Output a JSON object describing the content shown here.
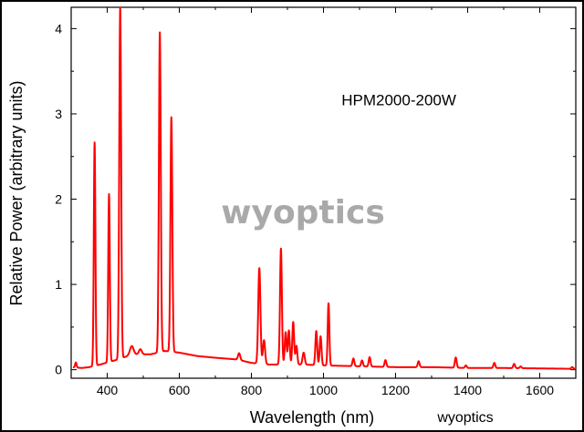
{
  "chart_data": {
    "type": "line",
    "title": "",
    "xlabel": "Wavelength (nm)",
    "ylabel": "Relative Power (arbitrary units)",
    "xlim": [
      300,
      1700
    ],
    "ylim": [
      -0.1,
      4.25
    ],
    "xticks": [
      400,
      600,
      800,
      1000,
      1200,
      1400,
      1600
    ],
    "yticks": [
      0,
      1,
      2,
      3,
      4
    ],
    "grid": false,
    "series": [
      {
        "color": "#ff0000",
        "baseline": [
          [
            300,
            0.03
          ],
          [
            330,
            0.02
          ],
          [
            350,
            0.03
          ],
          [
            380,
            0.06
          ],
          [
            430,
            0.12
          ],
          [
            470,
            0.18
          ],
          [
            520,
            0.18
          ],
          [
            560,
            0.22
          ],
          [
            600,
            0.2
          ],
          [
            650,
            0.16
          ],
          [
            700,
            0.14
          ],
          [
            760,
            0.12
          ],
          [
            800,
            0.08
          ],
          [
            850,
            0.06
          ],
          [
            900,
            0.06
          ],
          [
            950,
            0.06
          ],
          [
            1000,
            0.05
          ],
          [
            1100,
            0.04
          ],
          [
            1200,
            0.03
          ],
          [
            1300,
            0.03
          ],
          [
            1400,
            0.02
          ],
          [
            1500,
            0.02
          ],
          [
            1600,
            0.015
          ],
          [
            1700,
            0.01
          ]
        ],
        "peaks": [
          {
            "x": 313,
            "y": 0.06,
            "w": 2
          },
          {
            "x": 365,
            "y": 2.62,
            "w": 2.2
          },
          {
            "x": 405,
            "y": 1.97,
            "w": 2.2
          },
          {
            "x": 436,
            "y": 4.12,
            "w": 2.6
          },
          {
            "x": 468,
            "y": 0.1,
            "w": 5
          },
          {
            "x": 492,
            "y": 0.06,
            "w": 4
          },
          {
            "x": 546,
            "y": 3.75,
            "w": 2.6
          },
          {
            "x": 578,
            "y": 2.75,
            "w": 2.6
          },
          {
            "x": 766,
            "y": 0.08,
            "w": 3
          },
          {
            "x": 822,
            "y": 1.12,
            "w": 3
          },
          {
            "x": 835,
            "y": 0.28,
            "w": 3
          },
          {
            "x": 882,
            "y": 1.36,
            "w": 2.6
          },
          {
            "x": 895,
            "y": 0.38,
            "w": 2.5
          },
          {
            "x": 904,
            "y": 0.4,
            "w": 2.5
          },
          {
            "x": 916,
            "y": 0.5,
            "w": 2.5
          },
          {
            "x": 925,
            "y": 0.22,
            "w": 2.5
          },
          {
            "x": 945,
            "y": 0.14,
            "w": 3
          },
          {
            "x": 980,
            "y": 0.4,
            "w": 2.5
          },
          {
            "x": 992,
            "y": 0.34,
            "w": 2.5
          },
          {
            "x": 1014,
            "y": 0.73,
            "w": 2.3
          },
          {
            "x": 1083,
            "y": 0.09,
            "w": 2.5
          },
          {
            "x": 1107,
            "y": 0.07,
            "w": 2.5
          },
          {
            "x": 1128,
            "y": 0.11,
            "w": 2.5
          },
          {
            "x": 1172,
            "y": 0.08,
            "w": 2.5
          },
          {
            "x": 1264,
            "y": 0.07,
            "w": 2.5
          },
          {
            "x": 1367,
            "y": 0.12,
            "w": 2.5
          },
          {
            "x": 1395,
            "y": 0.03,
            "w": 2.5
          },
          {
            "x": 1474,
            "y": 0.06,
            "w": 2.5
          },
          {
            "x": 1529,
            "y": 0.05,
            "w": 2.5
          },
          {
            "x": 1547,
            "y": 0.02,
            "w": 2.5
          },
          {
            "x": 1690,
            "y": 0.02,
            "w": 2.5
          }
        ]
      }
    ],
    "annotations": [
      {
        "text": "HPM2000-200W",
        "x": 1050,
        "y": 3.1
      }
    ]
  },
  "watermark": "wyoptics",
  "watermark_small": "wyoptics",
  "colors": {
    "series": "#ff0000",
    "axis": "#000000",
    "watermark": "#a9a9a9"
  }
}
